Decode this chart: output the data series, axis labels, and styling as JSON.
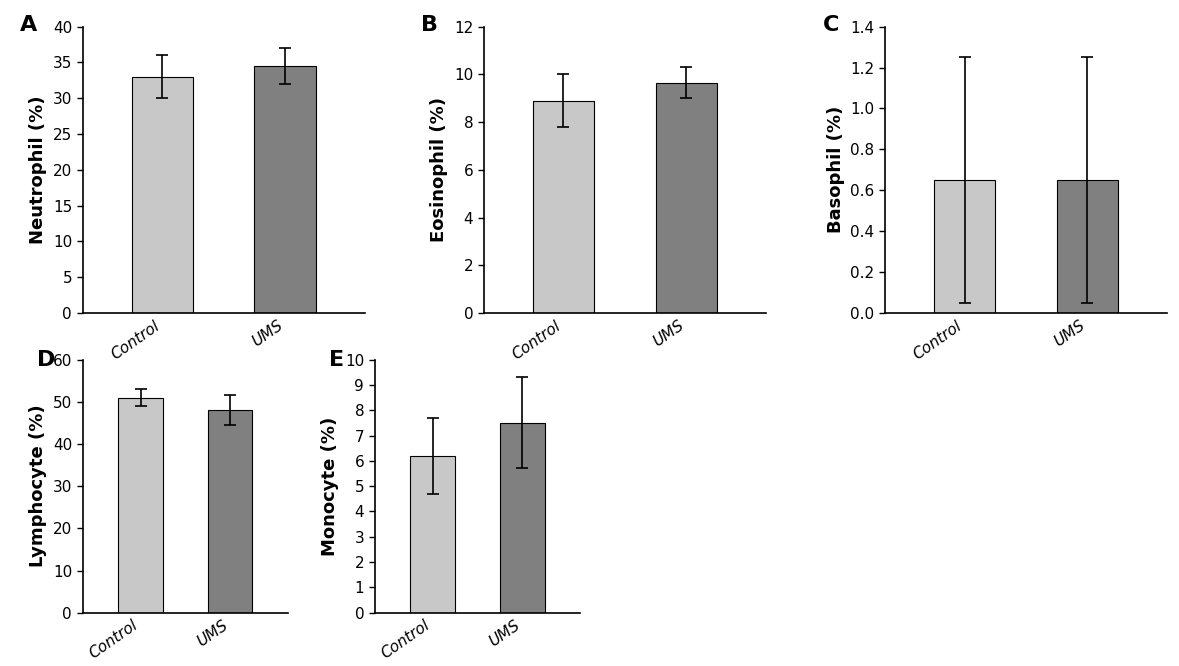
{
  "panels": [
    {
      "label": "A",
      "ylabel": "Neutrophil (%)",
      "categories": [
        "Control",
        "UMS"
      ],
      "values": [
        33.0,
        34.5
      ],
      "errors": [
        3.0,
        2.5
      ],
      "ylim": [
        0,
        40
      ],
      "yticks": [
        0,
        5,
        10,
        15,
        20,
        25,
        30,
        35,
        40
      ]
    },
    {
      "label": "B",
      "ylabel": "Eosinophil (%)",
      "categories": [
        "Control",
        "UMS"
      ],
      "values": [
        8.9,
        9.65
      ],
      "errors": [
        1.1,
        0.65
      ],
      "ylim": [
        0,
        12
      ],
      "yticks": [
        0,
        2,
        4,
        6,
        8,
        10,
        12
      ]
    },
    {
      "label": "C",
      "ylabel": "Basophil (%)",
      "categories": [
        "Control",
        "UMS"
      ],
      "values": [
        0.65,
        0.65
      ],
      "errors": [
        0.6,
        0.6
      ],
      "ylim": [
        0,
        1.4
      ],
      "yticks": [
        0,
        0.2,
        0.4,
        0.6,
        0.8,
        1.0,
        1.2,
        1.4
      ]
    },
    {
      "label": "D",
      "ylabel": "Lymphocyte (%)",
      "categories": [
        "Control",
        "UMS"
      ],
      "values": [
        51.0,
        48.0
      ],
      "errors": [
        2.0,
        3.5
      ],
      "ylim": [
        0,
        60
      ],
      "yticks": [
        0,
        10,
        20,
        30,
        40,
        50,
        60
      ]
    },
    {
      "label": "E",
      "ylabel": "Monocyte (%)",
      "categories": [
        "Control",
        "UMS"
      ],
      "values": [
        6.2,
        7.5
      ],
      "errors": [
        1.5,
        1.8
      ],
      "ylim": [
        0,
        10
      ],
      "yticks": [
        0,
        1,
        2,
        3,
        4,
        5,
        6,
        7,
        8,
        9,
        10
      ]
    }
  ],
  "color_control": "#c8c8c8",
  "color_ums": "#808080",
  "bar_width": 0.5,
  "label_fontsize": 13,
  "tick_fontsize": 11,
  "panel_label_fontsize": 16,
  "xlabel_rotation": 35,
  "background_color": "#ffffff",
  "error_capsize": 4,
  "error_linewidth": 1.2
}
